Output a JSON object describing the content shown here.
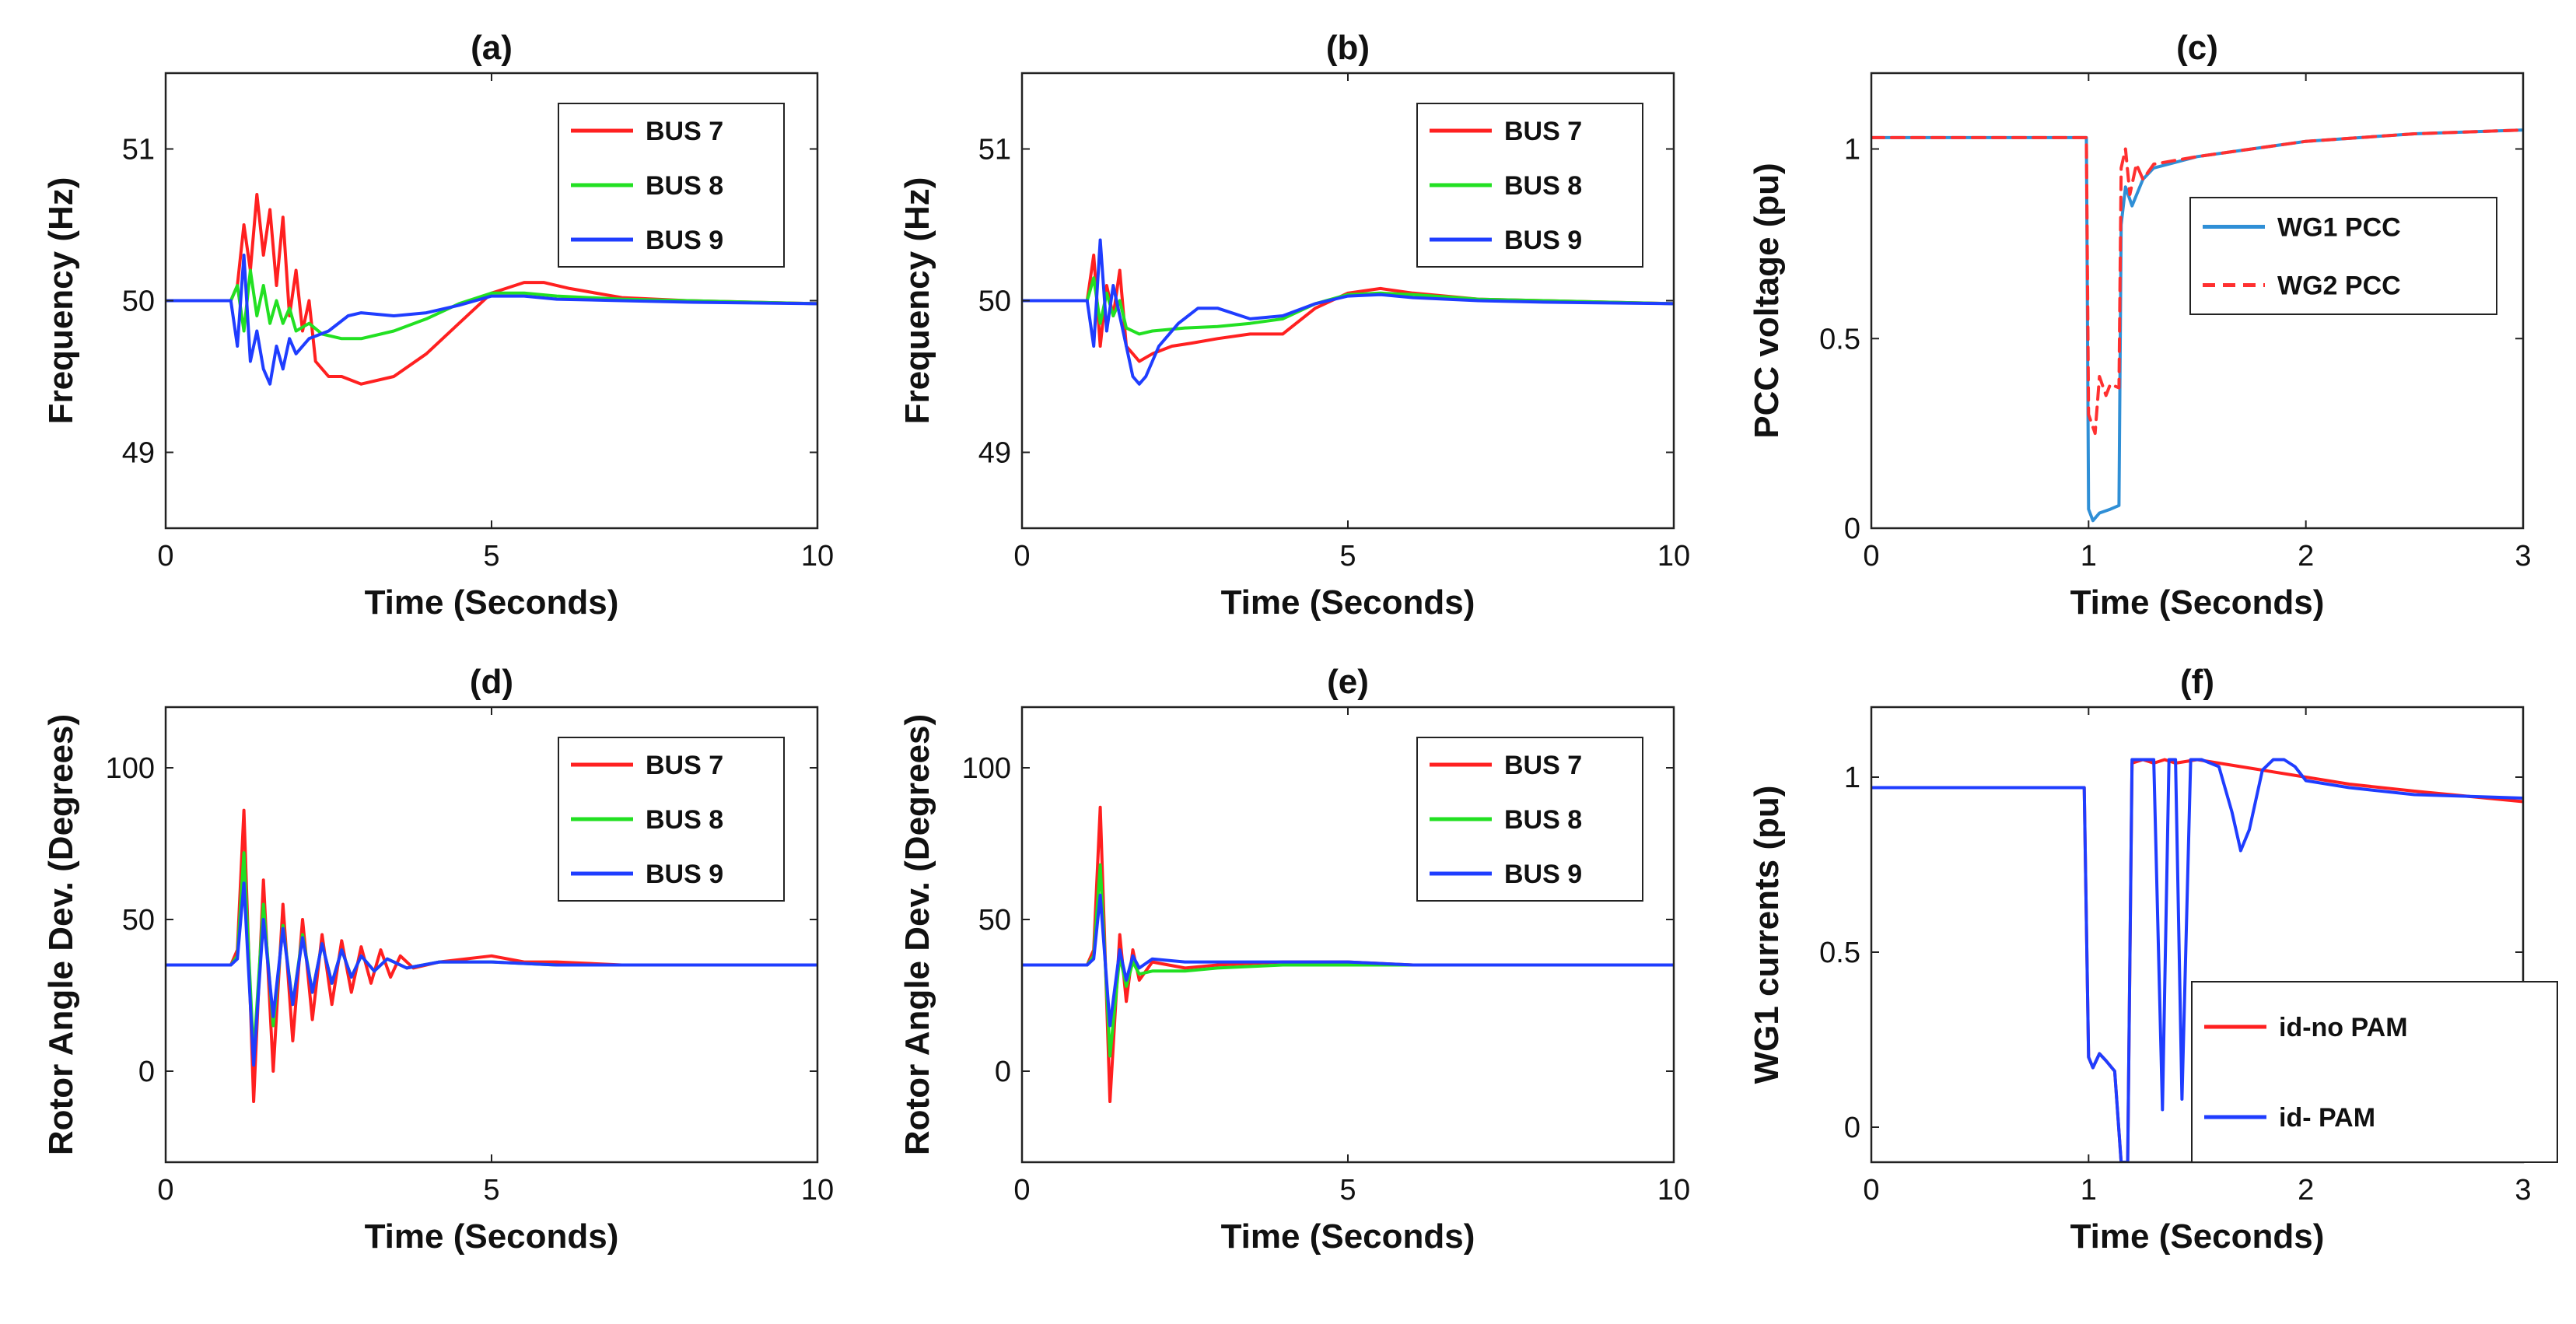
{
  "chart_data": [
    {
      "id": "a",
      "type": "line",
      "title": "(a)",
      "xlabel": "Time (Seconds)",
      "ylabel": "Frequency (Hz)",
      "xlim": [
        0,
        10
      ],
      "ylim": [
        48.5,
        51.5
      ],
      "xticks": [
        0,
        5,
        10
      ],
      "yticks": [
        49,
        50,
        51
      ],
      "legend": "top-right",
      "series": [
        {
          "name": "BUS 7",
          "color": "#ff2020",
          "x": [
            0,
            1,
            1.1,
            1.2,
            1.3,
            1.4,
            1.5,
            1.6,
            1.7,
            1.8,
            1.9,
            2.0,
            2.1,
            2.2,
            2.3,
            2.5,
            2.7,
            3.0,
            3.5,
            4.0,
            4.5,
            5.0,
            5.5,
            5.8,
            6.2,
            7,
            8,
            10
          ],
          "y": [
            50,
            50,
            50.1,
            50.5,
            50.2,
            50.7,
            50.3,
            50.6,
            50.1,
            50.55,
            49.9,
            50.2,
            49.8,
            50,
            49.6,
            49.5,
            49.5,
            49.45,
            49.5,
            49.65,
            49.85,
            50.05,
            50.12,
            50.12,
            50.08,
            50.02,
            50,
            49.98
          ]
        },
        {
          "name": "BUS 8",
          "color": "#22e022",
          "x": [
            0,
            1,
            1.1,
            1.2,
            1.3,
            1.4,
            1.5,
            1.6,
            1.7,
            1.8,
            1.9,
            2.0,
            2.2,
            2.4,
            2.7,
            3.0,
            3.5,
            4.0,
            4.5,
            5.0,
            5.5,
            6,
            7,
            8,
            10
          ],
          "y": [
            50,
            50,
            50.1,
            49.8,
            50.2,
            49.9,
            50.1,
            49.85,
            50,
            49.85,
            49.95,
            49.8,
            49.85,
            49.78,
            49.75,
            49.75,
            49.8,
            49.88,
            49.98,
            50.05,
            50.05,
            50.03,
            50.01,
            50,
            49.98
          ]
        },
        {
          "name": "BUS 9",
          "color": "#1f3dff",
          "x": [
            0,
            1,
            1.1,
            1.2,
            1.3,
            1.4,
            1.5,
            1.6,
            1.7,
            1.8,
            1.9,
            2.0,
            2.2,
            2.5,
            2.8,
            3.0,
            3.5,
            4.0,
            4.5,
            5.0,
            5.5,
            6,
            7,
            8,
            10
          ],
          "y": [
            50,
            50,
            49.7,
            50.3,
            49.6,
            49.8,
            49.55,
            49.45,
            49.7,
            49.55,
            49.75,
            49.65,
            49.75,
            49.8,
            49.9,
            49.92,
            49.9,
            49.92,
            49.97,
            50.03,
            50.03,
            50.01,
            50,
            49.99,
            49.98
          ]
        }
      ]
    },
    {
      "id": "b",
      "type": "line",
      "title": "(b)",
      "xlabel": "Time (Seconds)",
      "ylabel": "Frequency (Hz)",
      "xlim": [
        0,
        10
      ],
      "ylim": [
        48.5,
        51.5
      ],
      "xticks": [
        0,
        5,
        10
      ],
      "yticks": [
        49,
        50,
        51
      ],
      "legend": "top-right",
      "series": [
        {
          "name": "BUS 7",
          "color": "#ff2020",
          "x": [
            0,
            1,
            1.1,
            1.2,
            1.3,
            1.4,
            1.5,
            1.6,
            1.7,
            1.8,
            2.0,
            2.3,
            2.6,
            3.0,
            3.5,
            4.0,
            4.5,
            5.0,
            5.5,
            6,
            7,
            8,
            10
          ],
          "y": [
            50,
            50,
            50.3,
            49.7,
            50.1,
            49.9,
            50.2,
            49.7,
            49.65,
            49.6,
            49.65,
            49.7,
            49.72,
            49.75,
            49.78,
            49.78,
            49.95,
            50.05,
            50.08,
            50.05,
            50.01,
            50,
            49.98
          ]
        },
        {
          "name": "BUS 8",
          "color": "#22e022",
          "x": [
            0,
            1,
            1.1,
            1.2,
            1.3,
            1.4,
            1.5,
            1.6,
            1.8,
            2.0,
            2.5,
            3.0,
            3.5,
            4.0,
            4.5,
            5.0,
            5.5,
            6,
            7,
            8,
            10
          ],
          "y": [
            50,
            50,
            50.15,
            49.85,
            50.05,
            49.9,
            50.0,
            49.82,
            49.78,
            49.8,
            49.82,
            49.83,
            49.85,
            49.88,
            49.98,
            50.04,
            50.05,
            50.04,
            50.01,
            50,
            49.98
          ]
        },
        {
          "name": "BUS 9",
          "color": "#1f3dff",
          "x": [
            0,
            1,
            1.1,
            1.2,
            1.3,
            1.4,
            1.5,
            1.6,
            1.7,
            1.8,
            1.9,
            2.1,
            2.4,
            2.7,
            3.0,
            3.5,
            4.0,
            4.5,
            5.0,
            5.5,
            6,
            7,
            8,
            10
          ],
          "y": [
            50,
            50,
            49.7,
            50.4,
            49.8,
            50.1,
            49.9,
            49.7,
            49.5,
            49.45,
            49.5,
            49.7,
            49.85,
            49.95,
            49.95,
            49.88,
            49.9,
            49.98,
            50.03,
            50.04,
            50.02,
            50,
            49.99,
            49.98
          ]
        }
      ]
    },
    {
      "id": "c",
      "type": "line",
      "title": "(c)",
      "xlabel": "Time (Seconds)",
      "ylabel": "PCC voltage (pu)",
      "xlim": [
        0,
        3
      ],
      "ylim": [
        0,
        1.2
      ],
      "xticks": [
        0,
        1,
        2,
        3
      ],
      "yticks": [
        0,
        0.5,
        1
      ],
      "legend": "right",
      "series": [
        {
          "name": "WG1 PCC",
          "color": "#2f8fd6",
          "dash": "solid",
          "x": [
            0,
            0.99,
            1.0,
            1.02,
            1.05,
            1.1,
            1.14,
            1.15,
            1.17,
            1.2,
            1.25,
            1.3,
            1.5,
            2.0,
            2.5,
            3.0
          ],
          "y": [
            1.03,
            1.03,
            0.05,
            0.02,
            0.04,
            0.05,
            0.06,
            0.8,
            0.9,
            0.85,
            0.92,
            0.95,
            0.98,
            1.02,
            1.04,
            1.05
          ]
        },
        {
          "name": "WG2 PCC",
          "color": "#ff3030",
          "dash": "dashed",
          "x": [
            0,
            0.99,
            1.0,
            1.03,
            1.05,
            1.08,
            1.1,
            1.14,
            1.15,
            1.17,
            1.19,
            1.22,
            1.25,
            1.3,
            1.5,
            2.0,
            2.5,
            3.0
          ],
          "y": [
            1.03,
            1.03,
            0.3,
            0.25,
            0.4,
            0.35,
            0.38,
            0.37,
            0.95,
            1.0,
            0.88,
            0.96,
            0.92,
            0.96,
            0.98,
            1.02,
            1.04,
            1.05
          ]
        }
      ]
    },
    {
      "id": "d",
      "type": "line",
      "title": "(d)",
      "xlabel": "Time (Seconds)",
      "ylabel": "Rotor Angle Dev. (Degrees)",
      "xlim": [
        0,
        10
      ],
      "ylim": [
        -30,
        120
      ],
      "xticks": [
        0,
        5,
        10
      ],
      "yticks": [
        0,
        50,
        100
      ],
      "legend": "top-right",
      "series": [
        {
          "name": "BUS 7",
          "color": "#ff2020",
          "x": [
            0,
            1.0,
            1.1,
            1.2,
            1.35,
            1.5,
            1.65,
            1.8,
            1.95,
            2.1,
            2.25,
            2.4,
            2.55,
            2.7,
            2.85,
            3.0,
            3.15,
            3.3,
            3.45,
            3.6,
            3.8,
            4.2,
            5.0,
            5.5,
            6,
            7,
            8,
            10
          ],
          "y": [
            35,
            35,
            40,
            86,
            -10,
            63,
            0,
            55,
            10,
            50,
            17,
            45,
            22,
            43,
            26,
            41,
            29,
            40,
            31,
            38,
            34,
            36,
            38,
            36,
            36,
            35,
            35,
            35
          ]
        },
        {
          "name": "BUS 8",
          "color": "#22e022",
          "x": [
            0,
            1.0,
            1.1,
            1.2,
            1.35,
            1.5,
            1.65,
            1.8,
            1.95,
            2.1,
            2.25,
            2.4,
            2.55,
            2.7,
            2.85,
            3.0,
            3.2,
            3.4,
            3.7,
            4.2,
            5,
            6,
            7,
            10
          ],
          "y": [
            35,
            35,
            38,
            72,
            5,
            55,
            15,
            48,
            22,
            45,
            26,
            42,
            29,
            40,
            31,
            38,
            33,
            37,
            34,
            36,
            36,
            35,
            35,
            35
          ]
        },
        {
          "name": "BUS 9",
          "color": "#1f3dff",
          "x": [
            0,
            1.0,
            1.1,
            1.2,
            1.35,
            1.5,
            1.65,
            1.8,
            1.95,
            2.1,
            2.25,
            2.4,
            2.55,
            2.7,
            2.85,
            3.0,
            3.2,
            3.4,
            3.7,
            4.2,
            5,
            6,
            7,
            10
          ],
          "y": [
            35,
            35,
            37,
            62,
            2,
            50,
            18,
            47,
            22,
            44,
            26,
            42,
            29,
            40,
            31,
            38,
            33,
            37,
            34,
            36,
            36,
            35,
            35,
            35
          ]
        }
      ]
    },
    {
      "id": "e",
      "type": "line",
      "title": "(e)",
      "xlabel": "Time (Seconds)",
      "ylabel": "Rotor Angle Dev. (Degrees)",
      "xlim": [
        0,
        10
      ],
      "ylim": [
        -30,
        120
      ],
      "xticks": [
        0,
        5,
        10
      ],
      "yticks": [
        0,
        50,
        100
      ],
      "legend": "top-right",
      "series": [
        {
          "name": "BUS 7",
          "color": "#ff2020",
          "x": [
            0,
            1.0,
            1.1,
            1.2,
            1.35,
            1.5,
            1.6,
            1.7,
            1.8,
            2.0,
            2.5,
            3.0,
            4.0,
            5,
            6,
            8,
            10
          ],
          "y": [
            35,
            35,
            40,
            87,
            -10,
            45,
            23,
            40,
            30,
            36,
            34,
            35,
            36,
            36,
            35,
            35,
            35
          ]
        },
        {
          "name": "BUS 8",
          "color": "#22e022",
          "x": [
            0,
            1.0,
            1.1,
            1.2,
            1.35,
            1.5,
            1.6,
            1.7,
            1.8,
            2.0,
            2.5,
            3.0,
            4.0,
            5,
            6,
            8,
            10
          ],
          "y": [
            35,
            35,
            38,
            68,
            5,
            38,
            28,
            36,
            32,
            33,
            33,
            34,
            35,
            35,
            35,
            35,
            35
          ]
        },
        {
          "name": "BUS 9",
          "color": "#1f3dff",
          "x": [
            0,
            1.0,
            1.1,
            1.2,
            1.35,
            1.5,
            1.6,
            1.7,
            1.8,
            2.0,
            2.5,
            3.0,
            4.0,
            5,
            6,
            8,
            10
          ],
          "y": [
            35,
            35,
            37,
            58,
            15,
            40,
            30,
            38,
            34,
            37,
            36,
            36,
            36,
            36,
            35,
            35,
            35
          ]
        }
      ]
    },
    {
      "id": "f",
      "type": "line",
      "title": "(f)",
      "xlabel": "Time (Seconds)",
      "ylabel": "WG1 currents (pu)",
      "xlim": [
        0,
        3
      ],
      "ylim": [
        -0.1,
        1.2
      ],
      "xticks": [
        0,
        1,
        2,
        3
      ],
      "yticks": [
        0,
        0.5,
        1
      ],
      "legend": "bottom-right",
      "series": [
        {
          "name": "id-no PAM",
          "color": "#ff2020",
          "x": [
            0,
            0.98,
            1.0,
            1.02,
            1.05,
            1.08,
            1.12,
            1.15,
            1.18,
            1.2,
            1.25,
            1.3,
            1.35,
            1.4,
            1.5,
            1.6,
            1.7,
            1.8,
            2.0,
            2.2,
            2.5,
            3.0
          ],
          "y": [
            0.97,
            0.97,
            0.2,
            0.17,
            0.21,
            0.19,
            0.16,
            -0.1,
            -0.1,
            1.04,
            1.05,
            1.04,
            1.05,
            1.04,
            1.05,
            1.04,
            1.03,
            1.02,
            1.0,
            0.98,
            0.96,
            0.93
          ]
        },
        {
          "name": "id- PAM",
          "color": "#1f3dff",
          "x": [
            0,
            0.98,
            1.0,
            1.02,
            1.05,
            1.08,
            1.12,
            1.15,
            1.18,
            1.2,
            1.25,
            1.3,
            1.34,
            1.37,
            1.4,
            1.43,
            1.47,
            1.52,
            1.6,
            1.66,
            1.7,
            1.74,
            1.8,
            1.85,
            1.9,
            1.95,
            2.0,
            2.1,
            2.2,
            2.5,
            3.0
          ],
          "y": [
            0.97,
            0.97,
            0.2,
            0.17,
            0.21,
            0.19,
            0.16,
            -0.1,
            -0.1,
            1.05,
            1.05,
            1.05,
            0.05,
            1.05,
            1.05,
            0.08,
            1.05,
            1.05,
            1.03,
            0.9,
            0.79,
            0.85,
            1.02,
            1.05,
            1.05,
            1.03,
            0.99,
            0.98,
            0.97,
            0.95,
            0.94
          ]
        }
      ]
    }
  ]
}
